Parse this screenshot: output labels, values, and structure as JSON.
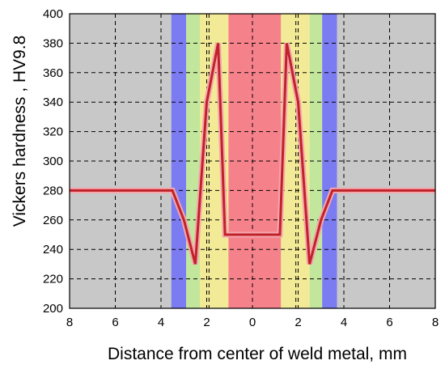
{
  "chart_data": {
    "type": "line",
    "title": "",
    "xlabel": "Distance from center of weld metal, mm",
    "ylabel": "Vickers hardness , HV9.8",
    "xlim": [
      -8,
      8
    ],
    "ylim": [
      200,
      400
    ],
    "x_ticks": [
      -8,
      -6,
      -4,
      -2,
      0,
      2,
      4,
      6,
      8
    ],
    "x_tick_labels": [
      "8",
      "6",
      "4",
      "2",
      "0",
      "2",
      "4",
      "6",
      "8"
    ],
    "y_ticks": [
      200,
      220,
      240,
      260,
      280,
      300,
      320,
      340,
      360,
      380,
      400
    ],
    "y_tick_labels": [
      "200",
      "220",
      "240",
      "260",
      "280",
      "300",
      "320",
      "340",
      "360",
      "380",
      "400"
    ],
    "grid": true,
    "vertical_markers_x": [
      -4,
      -2,
      -1.9,
      1.9,
      2,
      4
    ],
    "background_bands": [
      {
        "from": -8,
        "to": -3.55,
        "color": "#c8c8c8"
      },
      {
        "from": -3.55,
        "to": -2.9,
        "color": "#7b7cf2"
      },
      {
        "from": -2.9,
        "to": -2.3,
        "color": "#c2e69c"
      },
      {
        "from": -2.3,
        "to": -1.05,
        "color": "#f2ea96"
      },
      {
        "from": -1.05,
        "to": 1.25,
        "color": "#f5828b"
      },
      {
        "from": 1.25,
        "to": 2.5,
        "color": "#f2ea96"
      },
      {
        "from": 2.5,
        "to": 3.05,
        "color": "#c2e69c"
      },
      {
        "from": 3.05,
        "to": 3.7,
        "color": "#7b7cf2"
      },
      {
        "from": 3.7,
        "to": 8,
        "color": "#c8c8c8"
      }
    ],
    "series": [
      {
        "color": "#c0222a",
        "halo_color": "#f5a6ac",
        "x": [
          -8,
          -3.5,
          -3.0,
          -2.5,
          -2.0,
          -1.5,
          -1.2,
          1.2,
          1.5,
          2.0,
          2.5,
          3.0,
          3.5,
          8
        ],
        "y": [
          280,
          280,
          260,
          230,
          340,
          380,
          250,
          250,
          380,
          340,
          230,
          260,
          280,
          280
        ]
      }
    ]
  }
}
